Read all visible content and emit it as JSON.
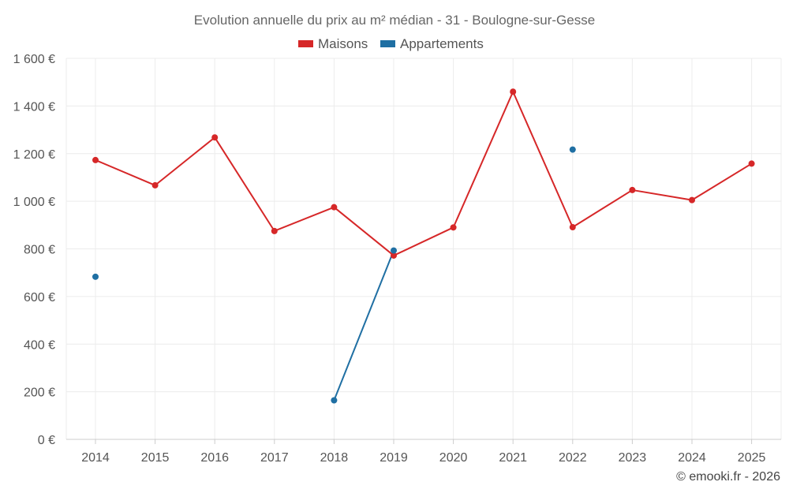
{
  "chart_data": {
    "type": "line",
    "title": "Evolution annuelle du prix au m² médian - 31 - Boulogne-sur-Gesse",
    "categories": [
      "2014",
      "2015",
      "2016",
      "2017",
      "2018",
      "2019",
      "2020",
      "2021",
      "2022",
      "2023",
      "2024",
      "2025"
    ],
    "y_ticks": [
      "0 €",
      "200 €",
      "400 €",
      "600 €",
      "800 €",
      "1 000 €",
      "1 200 €",
      "1 400 €",
      "1 600 €"
    ],
    "ylim": [
      0,
      1600
    ],
    "grid": true,
    "legend_position": "top-center",
    "series": [
      {
        "name": "Maisons",
        "color": "#d62728",
        "values": [
          1173,
          1067,
          1268,
          875,
          975,
          772,
          890,
          1460,
          891,
          1047,
          1005,
          1158
        ]
      },
      {
        "name": "Appartements",
        "color": "#1f6fa3",
        "values": [
          683,
          null,
          null,
          null,
          164,
          793,
          null,
          null,
          1217,
          null,
          null,
          null
        ]
      }
    ],
    "credit": "© emooki.fr - 2026"
  }
}
